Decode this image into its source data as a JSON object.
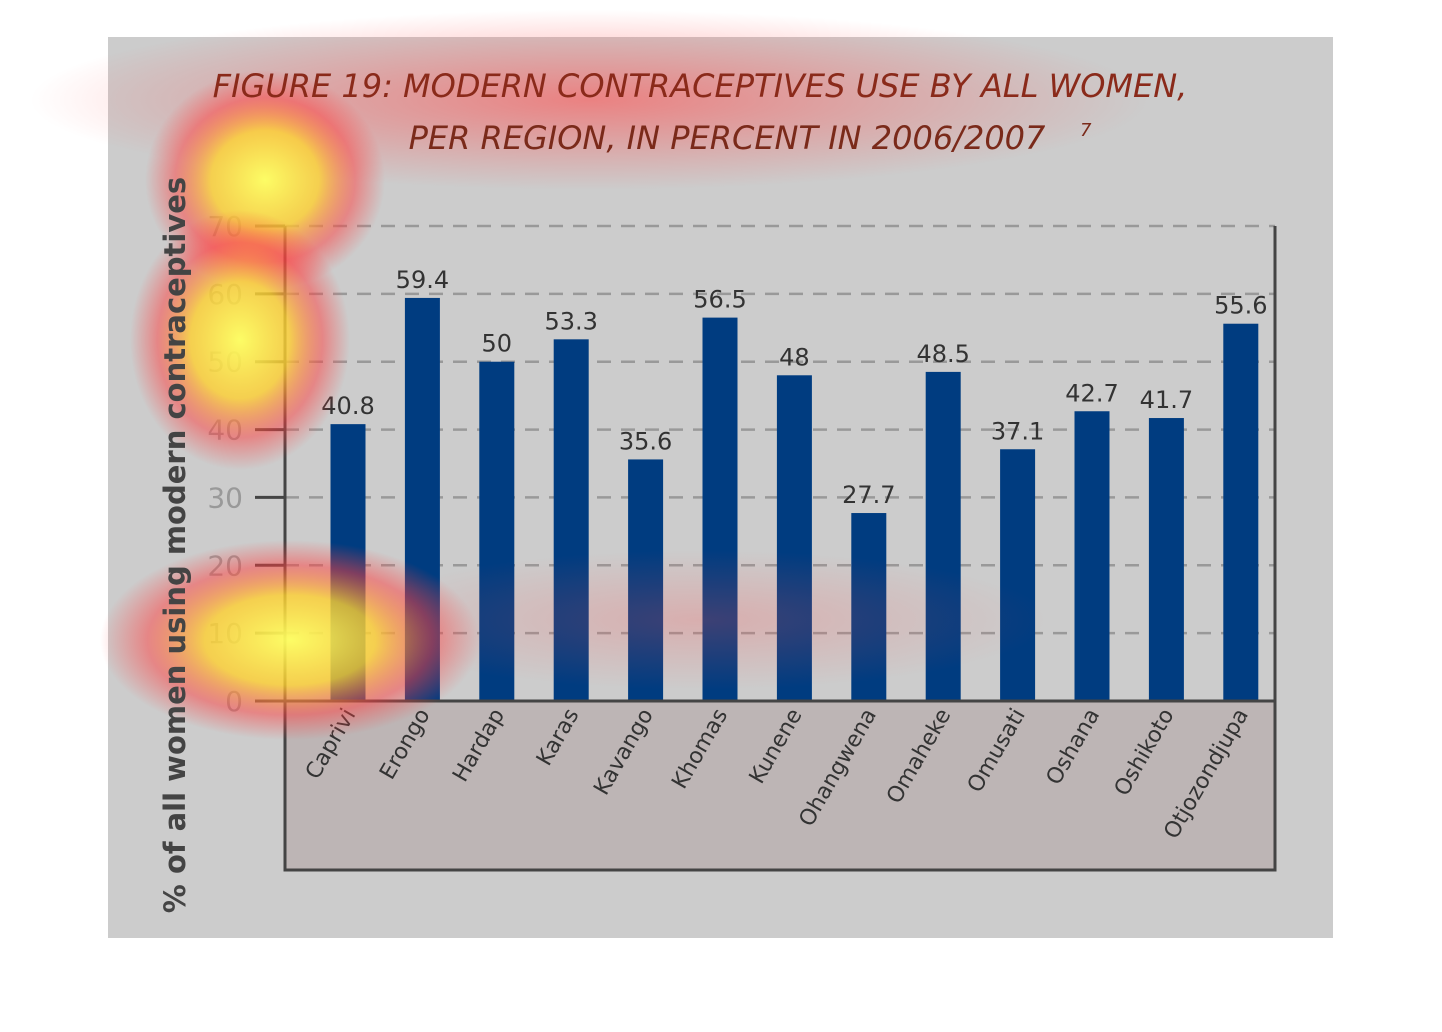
{
  "chart_data": {
    "type": "bar",
    "title": [
      "FIGURE 19: MODERN CONTRACEPTIVES USE BY ALL WOMEN,",
      "PER REGION, IN PERCENT IN 2006/2007"
    ],
    "title_footnote": "7",
    "y_axis_label": "% of all women using modern contraceptives",
    "categories": [
      "Caprivi",
      "Erongo",
      "Hardap",
      "Karas",
      "Kavango",
      "Khomas",
      "Kunene",
      "Ohangwena",
      "Omaheke",
      "Omusati",
      "Oshana",
      "Oshikoto",
      "Otjozondjupa"
    ],
    "values": [
      40.8,
      59.4,
      50,
      53.3,
      35.6,
      56.5,
      48,
      27.7,
      48.5,
      37.1,
      42.7,
      41.7,
      55.6
    ],
    "color": "#003c80",
    "ylim": [
      0,
      70
    ],
    "yticks": [
      0,
      10,
      20,
      30,
      40,
      50,
      60,
      70
    ],
    "grid": true
  }
}
